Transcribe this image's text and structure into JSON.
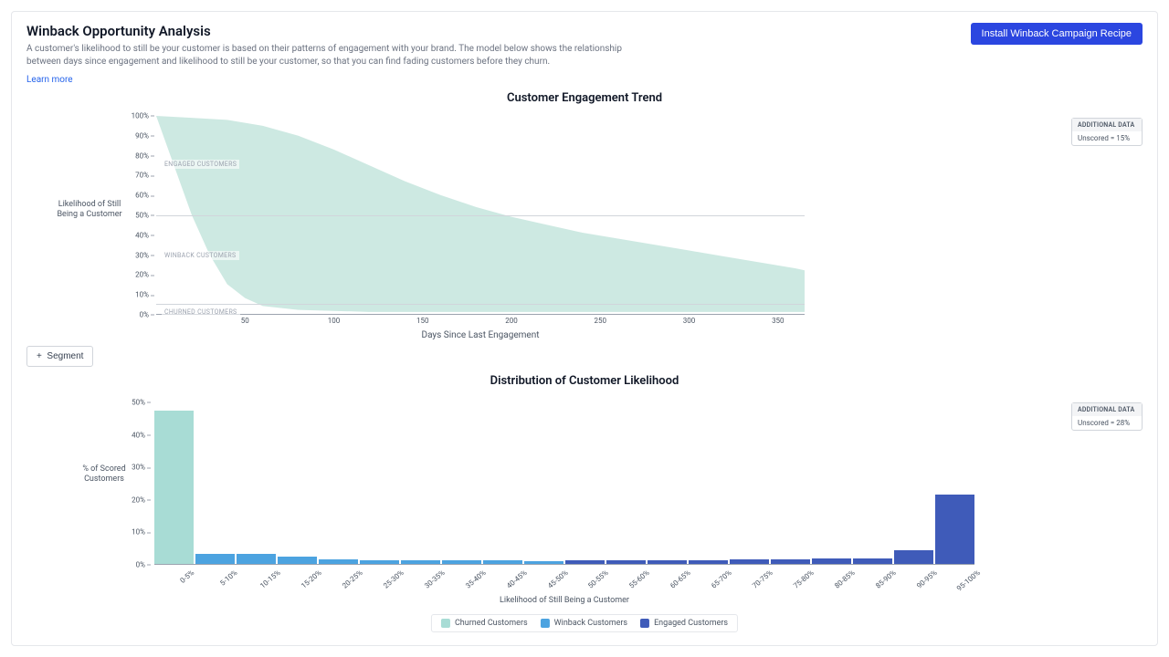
{
  "header": {
    "title": "Winback Opportunity Analysis",
    "description": "A customer's likelihood to still be your customer is based on their patterns of engagement with your brand. The model below shows the relationship between days since engagement and likelihood to still be your customer, so that you can find fading customers before they churn.",
    "learn_more": "Learn more",
    "install_button": "Install Winback Campaign Recipe"
  },
  "colors": {
    "area_fill": "#cde9e2",
    "grid": "#d1d5db",
    "axis": "#9ca3af",
    "churned": "#a8dcd5",
    "winback": "#4ca3e0",
    "engaged": "#3f5bb9",
    "button": "#2b46e0"
  },
  "chart1": {
    "title": "Customer Engagement Trend",
    "ylabel": "Likelihood of Still Being a Customer",
    "xlabel": "Days Since Last Engagement",
    "ylim": [
      0,
      100
    ],
    "ytick_step": 10,
    "xlim": [
      0,
      365
    ],
    "xticks": [
      50,
      100,
      150,
      200,
      250,
      300,
      350
    ],
    "ref_lines": [
      50,
      5
    ],
    "region_labels": [
      {
        "text": "ENGAGED CUSTOMERS",
        "y": 78
      },
      {
        "text": "WINBACK CUSTOMERS",
        "y": 32
      },
      {
        "text": "CHURNED CUSTOMERS",
        "y": 3
      }
    ],
    "curve": [
      {
        "x": 0,
        "y": 100
      },
      {
        "x": 20,
        "y": 99
      },
      {
        "x": 40,
        "y": 98
      },
      {
        "x": 60,
        "y": 95
      },
      {
        "x": 80,
        "y": 90
      },
      {
        "x": 100,
        "y": 83
      },
      {
        "x": 120,
        "y": 75
      },
      {
        "x": 140,
        "y": 67
      },
      {
        "x": 160,
        "y": 60
      },
      {
        "x": 180,
        "y": 54
      },
      {
        "x": 200,
        "y": 49
      },
      {
        "x": 220,
        "y": 45
      },
      {
        "x": 240,
        "y": 41
      },
      {
        "x": 260,
        "y": 38
      },
      {
        "x": 280,
        "y": 35
      },
      {
        "x": 300,
        "y": 32
      },
      {
        "x": 320,
        "y": 29
      },
      {
        "x": 340,
        "y": 26
      },
      {
        "x": 360,
        "y": 23
      },
      {
        "x": 365,
        "y": 22
      }
    ],
    "lower_curve": [
      {
        "x": 0,
        "y": 100
      },
      {
        "x": 10,
        "y": 75
      },
      {
        "x": 20,
        "y": 50
      },
      {
        "x": 30,
        "y": 30
      },
      {
        "x": 40,
        "y": 15
      },
      {
        "x": 50,
        "y": 8
      },
      {
        "x": 60,
        "y": 4
      },
      {
        "x": 80,
        "y": 2
      },
      {
        "x": 120,
        "y": 1
      },
      {
        "x": 365,
        "y": 1
      }
    ],
    "additional_data": {
      "header": "ADDITIONAL DATA",
      "body": "Unscored = 15%"
    }
  },
  "segment_button": "Segment",
  "chart2": {
    "title": "Distribution of Customer Likelihood",
    "ylabel": "% of Scored Customers",
    "xlabel": "Likelihood of Still Being a Customer",
    "ylim": [
      0,
      50
    ],
    "ytick_step": 10,
    "bars": [
      {
        "label": "0-5%",
        "value": 47.5,
        "cat": "churned"
      },
      {
        "label": "5-10%",
        "value": 3.2,
        "cat": "winback"
      },
      {
        "label": "10-15%",
        "value": 3.2,
        "cat": "winback"
      },
      {
        "label": "15-20%",
        "value": 2.3,
        "cat": "winback"
      },
      {
        "label": "20-25%",
        "value": 1.3,
        "cat": "winback"
      },
      {
        "label": "25-30%",
        "value": 1.2,
        "cat": "winback"
      },
      {
        "label": "30-35%",
        "value": 1.1,
        "cat": "winback"
      },
      {
        "label": "35-40%",
        "value": 1.0,
        "cat": "winback"
      },
      {
        "label": "40-45%",
        "value": 1.0,
        "cat": "winback"
      },
      {
        "label": "45-50%",
        "value": 0.9,
        "cat": "winback"
      },
      {
        "label": "50-55%",
        "value": 1.0,
        "cat": "engaged"
      },
      {
        "label": "55-60%",
        "value": 1.0,
        "cat": "engaged"
      },
      {
        "label": "60-65%",
        "value": 1.0,
        "cat": "engaged"
      },
      {
        "label": "65-70%",
        "value": 1.2,
        "cat": "engaged"
      },
      {
        "label": "70-75%",
        "value": 1.3,
        "cat": "engaged"
      },
      {
        "label": "75-80%",
        "value": 1.4,
        "cat": "engaged"
      },
      {
        "label": "80-85%",
        "value": 1.8,
        "cat": "engaged"
      },
      {
        "label": "85-90%",
        "value": 1.6,
        "cat": "engaged"
      },
      {
        "label": "90-95%",
        "value": 4.2,
        "cat": "engaged"
      },
      {
        "label": "95-100%",
        "value": 21.5,
        "cat": "engaged"
      }
    ],
    "legend": [
      {
        "label": "Churned Customers",
        "color_key": "churned"
      },
      {
        "label": "Winback Customers",
        "color_key": "winback"
      },
      {
        "label": "Engaged Customers",
        "color_key": "engaged"
      }
    ],
    "additional_data": {
      "header": "ADDITIONAL DATA",
      "body": "Unscored = 28%"
    }
  }
}
